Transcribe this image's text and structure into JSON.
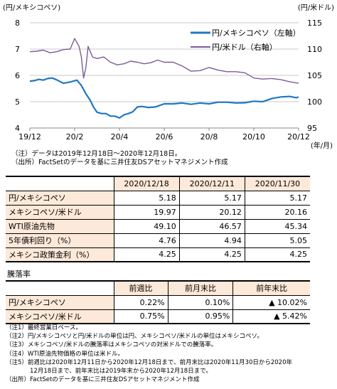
{
  "chart_data": {
    "type": "line",
    "left_axis_label": "(円/メキシコペソ)",
    "right_axis_label": "(円/米ドル)",
    "x_unit_label": "(年/月)",
    "x_ticks": [
      "19/12",
      "20/2",
      "20/4",
      "20/6",
      "20/8",
      "20/10",
      "20/12"
    ],
    "y_left": {
      "min": 4,
      "max": 8,
      "ticks": [
        "8",
        "7",
        "6",
        "5",
        "4"
      ]
    },
    "y_right": {
      "min": 95,
      "max": 115,
      "ticks": [
        "115",
        "110",
        "105",
        "100",
        "95"
      ]
    },
    "grid": "horizontal",
    "legend_position": "top-right",
    "series": [
      {
        "name": "円/メキシコペソ（左軸）",
        "axis": "left",
        "color": "#1f77c4",
        "x": [
          0,
          0.2,
          0.4,
          0.6,
          0.8,
          1.0,
          1.2,
          1.5,
          1.8,
          2.1,
          2.3,
          2.5,
          2.7,
          2.85,
          3.0,
          3.2,
          3.4,
          3.6,
          3.8,
          4.0,
          4.2,
          4.4,
          4.6,
          4.8,
          5.0,
          5.3,
          5.6,
          6.0,
          6.4,
          6.8,
          7.2,
          7.6,
          8.0,
          8.4,
          8.8,
          9.2,
          9.6,
          10.0,
          10.4,
          10.8,
          11.2,
          11.6,
          11.9,
          12.0
        ],
        "values": [
          5.78,
          5.8,
          5.85,
          5.82,
          5.88,
          5.9,
          5.83,
          5.7,
          5.75,
          5.82,
          5.62,
          5.3,
          5.05,
          4.78,
          4.6,
          4.55,
          4.55,
          4.45,
          4.45,
          4.38,
          4.5,
          4.55,
          4.62,
          4.8,
          4.82,
          4.78,
          4.8,
          4.92,
          4.92,
          4.95,
          4.9,
          4.95,
          4.92,
          4.98,
          4.98,
          4.95,
          4.96,
          5.02,
          5.0,
          5.12,
          5.18,
          5.2,
          5.15,
          5.18
        ]
      },
      {
        "name": "円/米ドル（右軸）",
        "axis": "right",
        "color": "#7a5c99",
        "x": [
          0,
          0.3,
          0.6,
          0.9,
          1.2,
          1.5,
          1.8,
          2.0,
          2.2,
          2.3,
          2.4,
          2.5,
          2.6,
          2.8,
          3.0,
          3.3,
          3.6,
          3.9,
          4.2,
          4.5,
          4.8,
          5.1,
          5.4,
          5.7,
          6.0,
          6.4,
          6.8,
          7.2,
          7.6,
          8.0,
          8.4,
          8.8,
          9.2,
          9.6,
          10.0,
          10.4,
          10.8,
          11.2,
          11.6,
          12.0
        ],
        "values": [
          109.5,
          109.6,
          109.8,
          109.3,
          109.5,
          109.9,
          110.0,
          112.0,
          110.5,
          108.5,
          104.5,
          106.5,
          110.5,
          108.5,
          108.2,
          108.5,
          107.5,
          107.0,
          107.2,
          107.7,
          107.5,
          107.2,
          107.4,
          107.9,
          107.5,
          107.5,
          106.8,
          105.8,
          105.9,
          106.5,
          106.0,
          105.7,
          105.7,
          105.5,
          104.5,
          104.3,
          104.4,
          104.2,
          103.8,
          103.5
        ]
      }
    ]
  },
  "notes_chart": [
    "（注）データは2019年12月18日～2020年12月18日。",
    "（出所）FactSetのデータを基に三井住友DSアセットマネジメント作成"
  ],
  "table1": {
    "headers": [
      "2020/12/18",
      "2020/12/11",
      "2020/11/30"
    ],
    "rows": [
      {
        "label": "円/メキシコペソ",
        "values": [
          "5.18",
          "5.17",
          "5.17"
        ]
      },
      {
        "label": "メキシコペソ/米ドル",
        "values": [
          "19.97",
          "20.12",
          "20.16"
        ]
      },
      {
        "label": "WTI原油先物",
        "values": [
          "49.10",
          "46.57",
          "45.34"
        ]
      },
      {
        "label": "5年債利回り（%）",
        "values": [
          "4.76",
          "4.94",
          "5.05"
        ]
      },
      {
        "label": "メキシコ政策金利（%）",
        "values": [
          "4.25",
          "4.25",
          "4.25"
        ]
      }
    ]
  },
  "table2": {
    "title": "騰落率",
    "headers": [
      "前週比",
      "前月末比",
      "前年末比"
    ],
    "rows": [
      {
        "label": "円/メキシコペソ",
        "values": [
          "0.22%",
          "0.10%",
          "▲ 10.02%"
        ]
      },
      {
        "label": "メキシコペソ/米ドル",
        "values": [
          "0.75%",
          "0.95%",
          "▲ 5.42%"
        ]
      }
    ]
  },
  "notes_bottom": [
    "（注1）最終営業日ベース。",
    "（注2）円/メキシコペソと円/米ドルの単位は円、メキシコペソ/米ドルの単位はメキシコペソ。",
    "（注3）メキシコペソ/米ドルの騰落率はメキシコペソの対米ドルでの騰落率。",
    "（注4）WTI原油先物価格の単位は米ドル。",
    "（注5）前週比は2020年12月11日から2020年12月18日まで、前月末比は2020年11月30日から2020年",
    "　　　　12月18日まで、前年末比は2019年末から2020年12月18日まで。",
    "（出所）FactSetのデータを基に三井住友DSアセットマネジメント作成"
  ]
}
